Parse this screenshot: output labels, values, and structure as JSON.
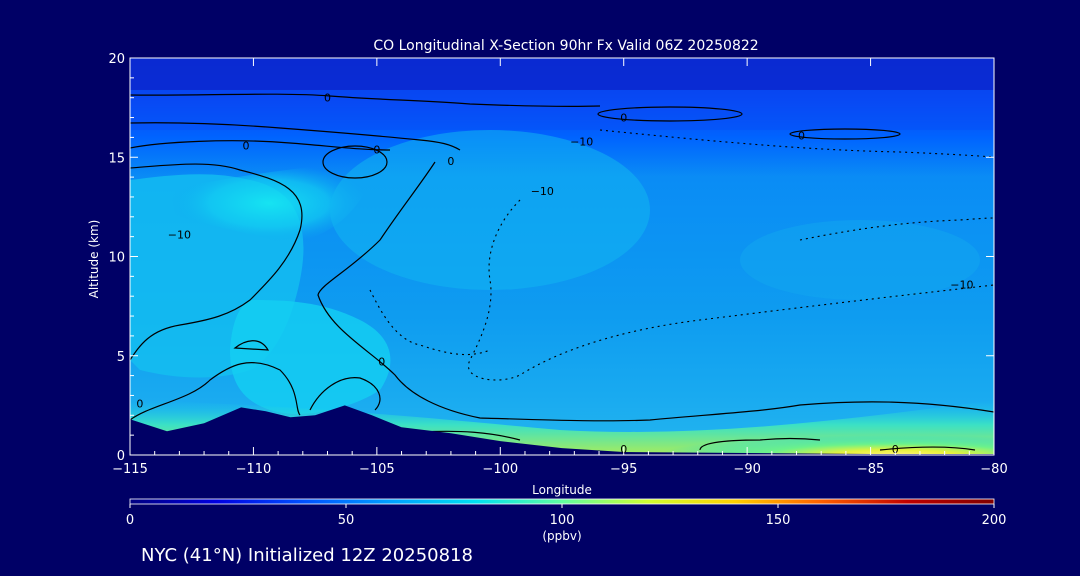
{
  "chart_data": {
    "type": "heatmap",
    "title": "CO Longitudinal X-Section 90hr  Fx Valid 06Z 20250822",
    "xlabel": "Longitude",
    "ylabel": "Altitude (km)",
    "xlim": [
      -115,
      -80
    ],
    "ylim": [
      0,
      20
    ],
    "x_ticks": [
      -115,
      -110,
      -105,
      -100,
      -95,
      -90,
      -85,
      -80
    ],
    "x_tick_labels": [
      "−115",
      "−110",
      "−105",
      "−100",
      "−95",
      "−90",
      "−85",
      "−80"
    ],
    "y_ticks": [
      0,
      5,
      10,
      15,
      20
    ],
    "y_tick_labels": [
      "0",
      "5",
      "10",
      "15",
      "20"
    ],
    "colorbar": {
      "label": "(ppbv)",
      "min": 0,
      "max": 200,
      "ticks": [
        0,
        50,
        100,
        150,
        200
      ],
      "tick_labels": [
        "0",
        "50",
        "100",
        "150",
        "200"
      ],
      "colors": [
        "#000080",
        "#0000e0",
        "#0050ff",
        "#00a0ff",
        "#00e0f0",
        "#60ffa0",
        "#d0ff30",
        "#ffd000",
        "#ff6000",
        "#c00000",
        "#800000"
      ]
    },
    "contour_labels": [
      {
        "text": "0",
        "lon": -107.0,
        "alt": 18.0
      },
      {
        "text": "0",
        "lon": -110.3,
        "alt": 15.6
      },
      {
        "text": "0",
        "lon": -105.0,
        "alt": 15.4
      },
      {
        "text": "0",
        "lon": -102.0,
        "alt": 14.8
      },
      {
        "text": "0",
        "lon": -95.0,
        "alt": 17.0
      },
      {
        "text": "0",
        "lon": -87.8,
        "alt": 16.1
      },
      {
        "text": "0",
        "lon": -104.8,
        "alt": 4.7
      },
      {
        "text": "0",
        "lon": -95.0,
        "alt": 0.3
      },
      {
        "text": "0",
        "lon": -84.0,
        "alt": 0.3
      },
      {
        "text": "0",
        "lon": -114.6,
        "alt": 2.6
      },
      {
        "text": "−10",
        "lon": -113.0,
        "alt": 11.1
      },
      {
        "text": "−10",
        "lon": -96.7,
        "alt": 15.8
      },
      {
        "text": "−10",
        "lon": -98.3,
        "alt": 13.3
      },
      {
        "text": "−10",
        "lon": -81.3,
        "alt": 8.6
      }
    ],
    "terrain_profile": [
      {
        "lon": -115,
        "alt": 1.8
      },
      {
        "lon": -113.5,
        "alt": 1.2
      },
      {
        "lon": -112,
        "alt": 1.6
      },
      {
        "lon": -110.5,
        "alt": 2.4
      },
      {
        "lon": -109.5,
        "alt": 2.2
      },
      {
        "lon": -108.5,
        "alt": 1.9
      },
      {
        "lon": -107.5,
        "alt": 2.0
      },
      {
        "lon": -106.3,
        "alt": 2.5
      },
      {
        "lon": -105.2,
        "alt": 2.0
      },
      {
        "lon": -104,
        "alt": 1.4
      },
      {
        "lon": -102,
        "alt": 1.1
      },
      {
        "lon": -100,
        "alt": 0.7
      },
      {
        "lon": -97.5,
        "alt": 0.35
      },
      {
        "lon": -95,
        "alt": 0.15
      },
      {
        "lon": -90,
        "alt": 0.1
      },
      {
        "lon": -85,
        "alt": 0.05
      },
      {
        "lon": -80,
        "alt": 0.05
      }
    ]
  },
  "footer": "NYC (41°N) Initialized 12Z 20250818"
}
